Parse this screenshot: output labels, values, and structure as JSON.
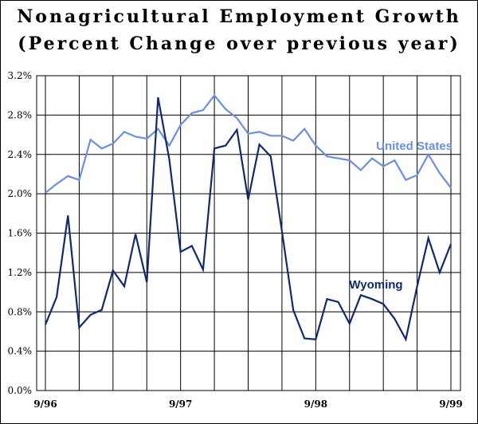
{
  "chart_data": {
    "type": "line",
    "title": "Nonagricultural Employment Growth",
    "subtitle": "(Percent Change over previous year)",
    "ylim": [
      0.0,
      3.2
    ],
    "yticks": [
      "0.0%",
      "0.4%",
      "0.8%",
      "1.2%",
      "1.6%",
      "2.0%",
      "2.4%",
      "2.8%",
      "3.2%"
    ],
    "xticks": [
      {
        "label": "9/96",
        "index": 0
      },
      {
        "label": "9/97",
        "index": 12
      },
      {
        "label": "9/98",
        "index": 24
      },
      {
        "label": "9/99",
        "index": 36
      }
    ],
    "grid": true,
    "x": [
      "9/96",
      "10/96",
      "11/96",
      "12/96",
      "1/97",
      "2/97",
      "3/97",
      "4/97",
      "5/97",
      "6/97",
      "7/97",
      "8/97",
      "9/97",
      "10/97",
      "11/97",
      "12/97",
      "1/98",
      "2/98",
      "3/98",
      "4/98",
      "5/98",
      "6/98",
      "7/98",
      "8/98",
      "9/98",
      "10/98",
      "11/98",
      "12/98",
      "1/99",
      "2/99",
      "3/99",
      "4/99",
      "5/99",
      "6/99",
      "7/99",
      "8/99",
      "9/99"
    ],
    "series": [
      {
        "name": "United States",
        "color": "#6a8fe8",
        "values": [
          2.01,
          2.1,
          2.18,
          2.14,
          2.55,
          2.46,
          2.51,
          2.63,
          2.58,
          2.56,
          2.66,
          2.49,
          2.7,
          2.82,
          2.85,
          3.0,
          2.86,
          2.77,
          2.61,
          2.63,
          2.59,
          2.59,
          2.54,
          2.66,
          2.49,
          2.38,
          2.36,
          2.34,
          2.24,
          2.36,
          2.28,
          2.34,
          2.14,
          2.19,
          2.4,
          2.21,
          2.06
        ]
      },
      {
        "name": "Wyoming",
        "color": "#0f2a70",
        "values": [
          0.67,
          0.95,
          1.78,
          0.64,
          0.77,
          0.82,
          1.22,
          1.06,
          1.59,
          1.1,
          2.98,
          2.35,
          1.41,
          1.47,
          1.23,
          2.46,
          2.49,
          2.65,
          1.94,
          2.5,
          2.38,
          1.62,
          0.82,
          0.53,
          0.52,
          0.93,
          0.9,
          0.68,
          0.97,
          0.93,
          0.88,
          0.73,
          0.52,
          1.06,
          1.55,
          1.2,
          1.49
        ]
      }
    ]
  }
}
